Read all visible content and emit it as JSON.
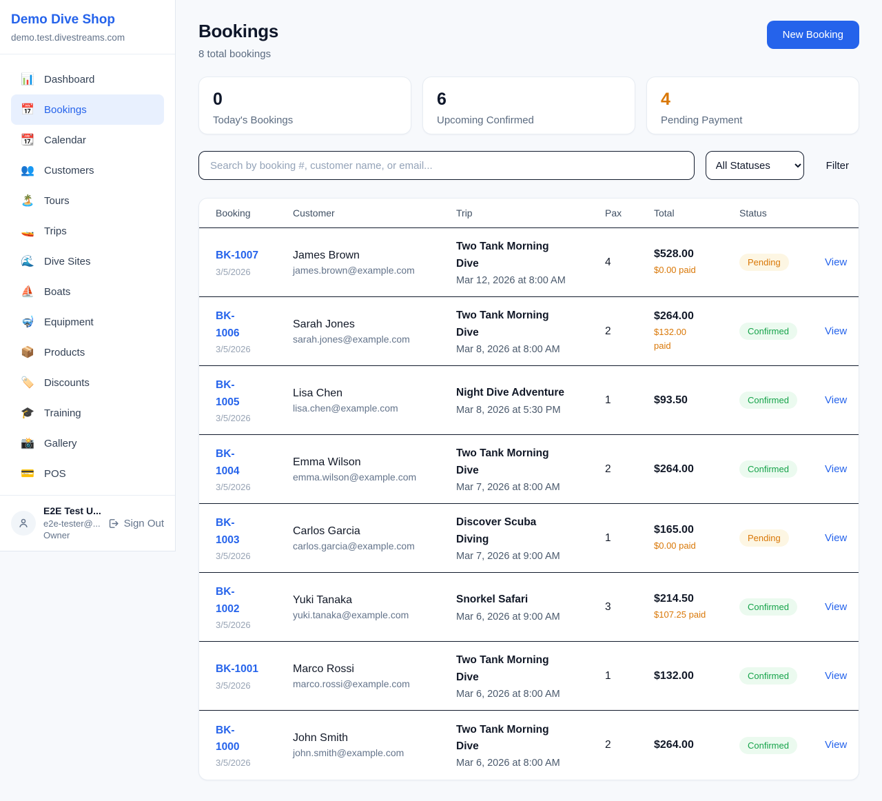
{
  "sidebar": {
    "shop_name": "Demo Dive Shop",
    "domain": "demo.test.divestreams.com",
    "items": [
      {
        "icon_name": "bar-chart-icon",
        "glyph": "📊",
        "label": "Dashboard",
        "active": false
      },
      {
        "icon_name": "calendar-17-icon",
        "glyph": "📅",
        "label": "Bookings",
        "active": true
      },
      {
        "icon_name": "tear-calendar-icon",
        "glyph": "📆",
        "label": "Calendar",
        "active": false
      },
      {
        "icon_name": "people-icon",
        "glyph": "👥",
        "label": "Customers",
        "active": false
      },
      {
        "icon_name": "island-icon",
        "glyph": "🏝️",
        "label": "Tours",
        "active": false
      },
      {
        "icon_name": "speedboat-icon",
        "glyph": "🚤",
        "label": "Trips",
        "active": false
      },
      {
        "icon_name": "wave-icon",
        "glyph": "🌊",
        "label": "Dive Sites",
        "active": false
      },
      {
        "icon_name": "sailboat-icon",
        "glyph": "⛵",
        "label": "Boats",
        "active": false
      },
      {
        "icon_name": "diving-mask-icon",
        "glyph": "🤿",
        "label": "Equipment",
        "active": false
      },
      {
        "icon_name": "package-icon",
        "glyph": "📦",
        "label": "Products",
        "active": false
      },
      {
        "icon_name": "tag-icon",
        "glyph": "🏷️",
        "label": "Discounts",
        "active": false
      },
      {
        "icon_name": "graduation-cap-icon",
        "glyph": "🎓",
        "label": "Training",
        "active": false
      },
      {
        "icon_name": "camera-flash-icon",
        "glyph": "📸",
        "label": "Gallery",
        "active": false
      },
      {
        "icon_name": "credit-card-icon",
        "glyph": "💳",
        "label": "POS",
        "active": false
      }
    ],
    "user": {
      "name": "E2E Test U...",
      "email": "e2e-tester@...",
      "role": "Owner",
      "sign_out_label": "Sign Out"
    }
  },
  "header": {
    "title": "Bookings",
    "subtitle": "8 total bookings",
    "new_booking_label": "New Booking"
  },
  "stats": [
    {
      "value": "0",
      "label": "Today's Bookings",
      "value_color": "#0f172a"
    },
    {
      "value": "6",
      "label": "Upcoming Confirmed",
      "value_color": "#0f172a"
    },
    {
      "value": "4",
      "label": "Pending Payment",
      "value_color": "#d97706"
    }
  ],
  "filters": {
    "search_placeholder": "Search by booking #, customer name, or email...",
    "status_select_value": "All Statuses",
    "filter_label": "Filter"
  },
  "table": {
    "columns": [
      "Booking",
      "Customer",
      "Trip",
      "Pax",
      "Total",
      "Status"
    ],
    "view_label": "View",
    "rows": [
      {
        "id_lines": [
          "BK-1007"
        ],
        "date": "3/5/2026",
        "customer": "James Brown",
        "email": "james.brown@example.com",
        "trip_lines": [
          "Two Tank Morning",
          "Dive"
        ],
        "trip_datetime": "Mar 12, 2026 at 8:00 AM",
        "pax": "4",
        "total": "$528.00",
        "paid_lines": [
          "$0.00 paid"
        ],
        "status": "Pending"
      },
      {
        "id_lines": [
          "BK-",
          "1006"
        ],
        "date": "3/5/2026",
        "customer": "Sarah Jones",
        "email": "sarah.jones@example.com",
        "trip_lines": [
          "Two Tank Morning",
          "Dive"
        ],
        "trip_datetime": "Mar 8, 2026 at 8:00 AM",
        "pax": "2",
        "total": "$264.00",
        "paid_lines": [
          "$132.00",
          "paid"
        ],
        "status": "Confirmed"
      },
      {
        "id_lines": [
          "BK-",
          "1005"
        ],
        "date": "3/5/2026",
        "customer": "Lisa Chen",
        "email": "lisa.chen@example.com",
        "trip_lines": [
          "Night Dive Adventure"
        ],
        "trip_datetime": "Mar 8, 2026 at 5:30 PM",
        "pax": "1",
        "total": "$93.50",
        "paid_lines": [],
        "status": "Confirmed"
      },
      {
        "id_lines": [
          "BK-",
          "1004"
        ],
        "date": "3/5/2026",
        "customer": "Emma Wilson",
        "email": "emma.wilson@example.com",
        "trip_lines": [
          "Two Tank Morning",
          "Dive"
        ],
        "trip_datetime": "Mar 7, 2026 at 8:00 AM",
        "pax": "2",
        "total": "$264.00",
        "paid_lines": [],
        "status": "Confirmed"
      },
      {
        "id_lines": [
          "BK-",
          "1003"
        ],
        "date": "3/5/2026",
        "customer": "Carlos Garcia",
        "email": "carlos.garcia@example.com",
        "trip_lines": [
          "Discover Scuba",
          "Diving"
        ],
        "trip_datetime": "Mar 7, 2026 at 9:00 AM",
        "pax": "1",
        "total": "$165.00",
        "paid_lines": [
          "$0.00 paid"
        ],
        "status": "Pending"
      },
      {
        "id_lines": [
          "BK-",
          "1002"
        ],
        "date": "3/5/2026",
        "customer": "Yuki Tanaka",
        "email": "yuki.tanaka@example.com",
        "trip_lines": [
          "Snorkel Safari"
        ],
        "trip_datetime": "Mar 6, 2026 at 9:00 AM",
        "pax": "3",
        "total": "$214.50",
        "paid_lines": [
          "$107.25 paid"
        ],
        "status": "Confirmed"
      },
      {
        "id_lines": [
          "BK-1001"
        ],
        "date": "3/5/2026",
        "customer": "Marco Rossi",
        "email": "marco.rossi@example.com",
        "trip_lines": [
          "Two Tank Morning",
          "Dive"
        ],
        "trip_datetime": "Mar 6, 2026 at 8:00 AM",
        "pax": "1",
        "total": "$132.00",
        "paid_lines": [],
        "status": "Confirmed"
      },
      {
        "id_lines": [
          "BK-",
          "1000"
        ],
        "date": "3/5/2026",
        "customer": "John Smith",
        "email": "john.smith@example.com",
        "trip_lines": [
          "Two Tank Morning",
          "Dive"
        ],
        "trip_datetime": "Mar 6, 2026 at 8:00 AM",
        "pax": "2",
        "total": "$264.00",
        "paid_lines": [],
        "status": "Confirmed"
      }
    ]
  },
  "colors": {
    "accent_blue": "#2563eb",
    "pending_text": "#d97706",
    "pending_bg": "#fdf6e3",
    "confirmed_text": "#16a34a",
    "confirmed_bg": "#ebfaef",
    "row_border": "#10192b",
    "page_bg": "#f7f9fc"
  }
}
